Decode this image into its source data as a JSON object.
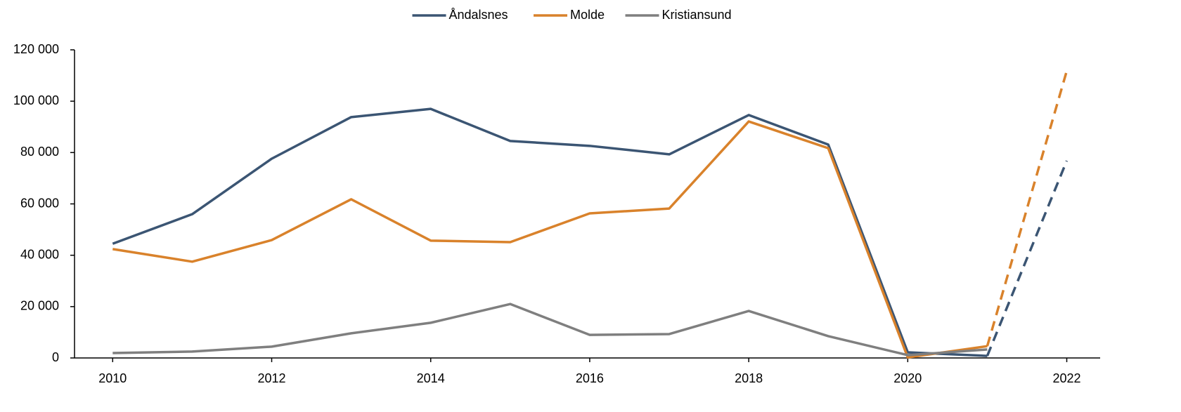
{
  "chart_data": {
    "type": "line",
    "x": [
      2010,
      2011,
      2012,
      2013,
      2014,
      2015,
      2016,
      2017,
      2018,
      2019,
      2020,
      2021,
      2022
    ],
    "series": [
      {
        "name": "Åndalsnes",
        "color": "#3b5573",
        "values": [
          44500,
          56000,
          77600,
          93800,
          97000,
          84500,
          82600,
          79300,
          94600,
          83100,
          2200,
          800,
          76800
        ]
      },
      {
        "name": "Molde",
        "color": "#d9822b",
        "values": [
          42400,
          37500,
          45900,
          61800,
          45700,
          45100,
          56300,
          58200,
          92100,
          81700,
          200,
          4600,
          111800
        ]
      },
      {
        "name": "Kristiansund",
        "color": "#7f7f7f",
        "values": [
          1900,
          2500,
          4400,
          9600,
          13700,
          21000,
          9000,
          9300,
          18300,
          8500,
          1100,
          3300,
          null
        ]
      }
    ],
    "dashed_from_index": 11,
    "xlim": [
      2009.52,
      2022.42
    ],
    "xticks": [
      2010,
      2012,
      2014,
      2016,
      2018,
      2020,
      2022
    ],
    "ylim": [
      0,
      120000
    ],
    "yticks": [
      0,
      {
        "value": 20000,
        "label": "20 000"
      },
      {
        "value": 40000,
        "label": "40 000"
      },
      {
        "value": 60000,
        "label": "60 000"
      },
      {
        "value": 80000,
        "label": "80 000"
      },
      {
        "value": 100000,
        "label": "100 000"
      },
      {
        "value": 120000,
        "label": "120 000"
      }
    ],
    "legend": "top",
    "grid": false
  }
}
